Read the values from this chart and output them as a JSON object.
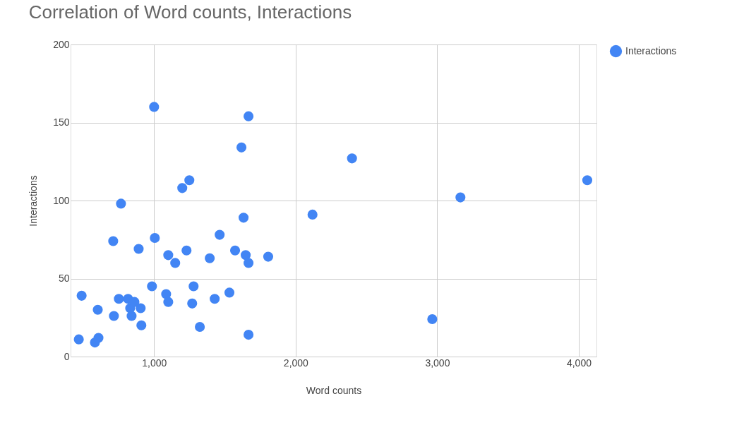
{
  "chart_data": {
    "type": "scatter",
    "title": "Correlation of Word counts, Interactions",
    "xlabel": "Word counts",
    "ylabel": "Interactions",
    "x": [
      488,
      468,
      582,
      607,
      602,
      711,
      716,
      751,
      766,
      816,
      831,
      841,
      861,
      891,
      905,
      910,
      985,
      1000,
      1005,
      1085,
      1100,
      1100,
      1149,
      1199,
      1229,
      1249,
      1269,
      1279,
      1323,
      1393,
      1428,
      1463,
      1532,
      1572,
      1617,
      1632,
      1647,
      1667,
      1667,
      1667,
      1806,
      2119,
      2398,
      2965,
      3164,
      4060
    ],
    "series": [
      {
        "name": "Interactions",
        "color": "#4285f4",
        "values": [
          39,
          11,
          9,
          12,
          30,
          74,
          26,
          37,
          98,
          37,
          31,
          26,
          35,
          69,
          31,
          20,
          45,
          160,
          76,
          40,
          65,
          35,
          60,
          108,
          68,
          113,
          34,
          45,
          19,
          63,
          37,
          78,
          41,
          68,
          134,
          89,
          65,
          60,
          154,
          14,
          64,
          91,
          127,
          24,
          102,
          113
        ]
      }
    ],
    "xlim": [
      410,
      4125
    ],
    "xticks": [
      {
        "value": 1000,
        "label": "1,000"
      },
      {
        "value": 2000,
        "label": "2,000"
      },
      {
        "value": 3000,
        "label": "3,000"
      },
      {
        "value": 4000,
        "label": "4,000"
      }
    ],
    "ylim": [
      0,
      200
    ],
    "yticks": [
      0,
      50,
      100,
      150,
      200
    ],
    "grid": true,
    "legend": "top right",
    "marker": "circle"
  }
}
